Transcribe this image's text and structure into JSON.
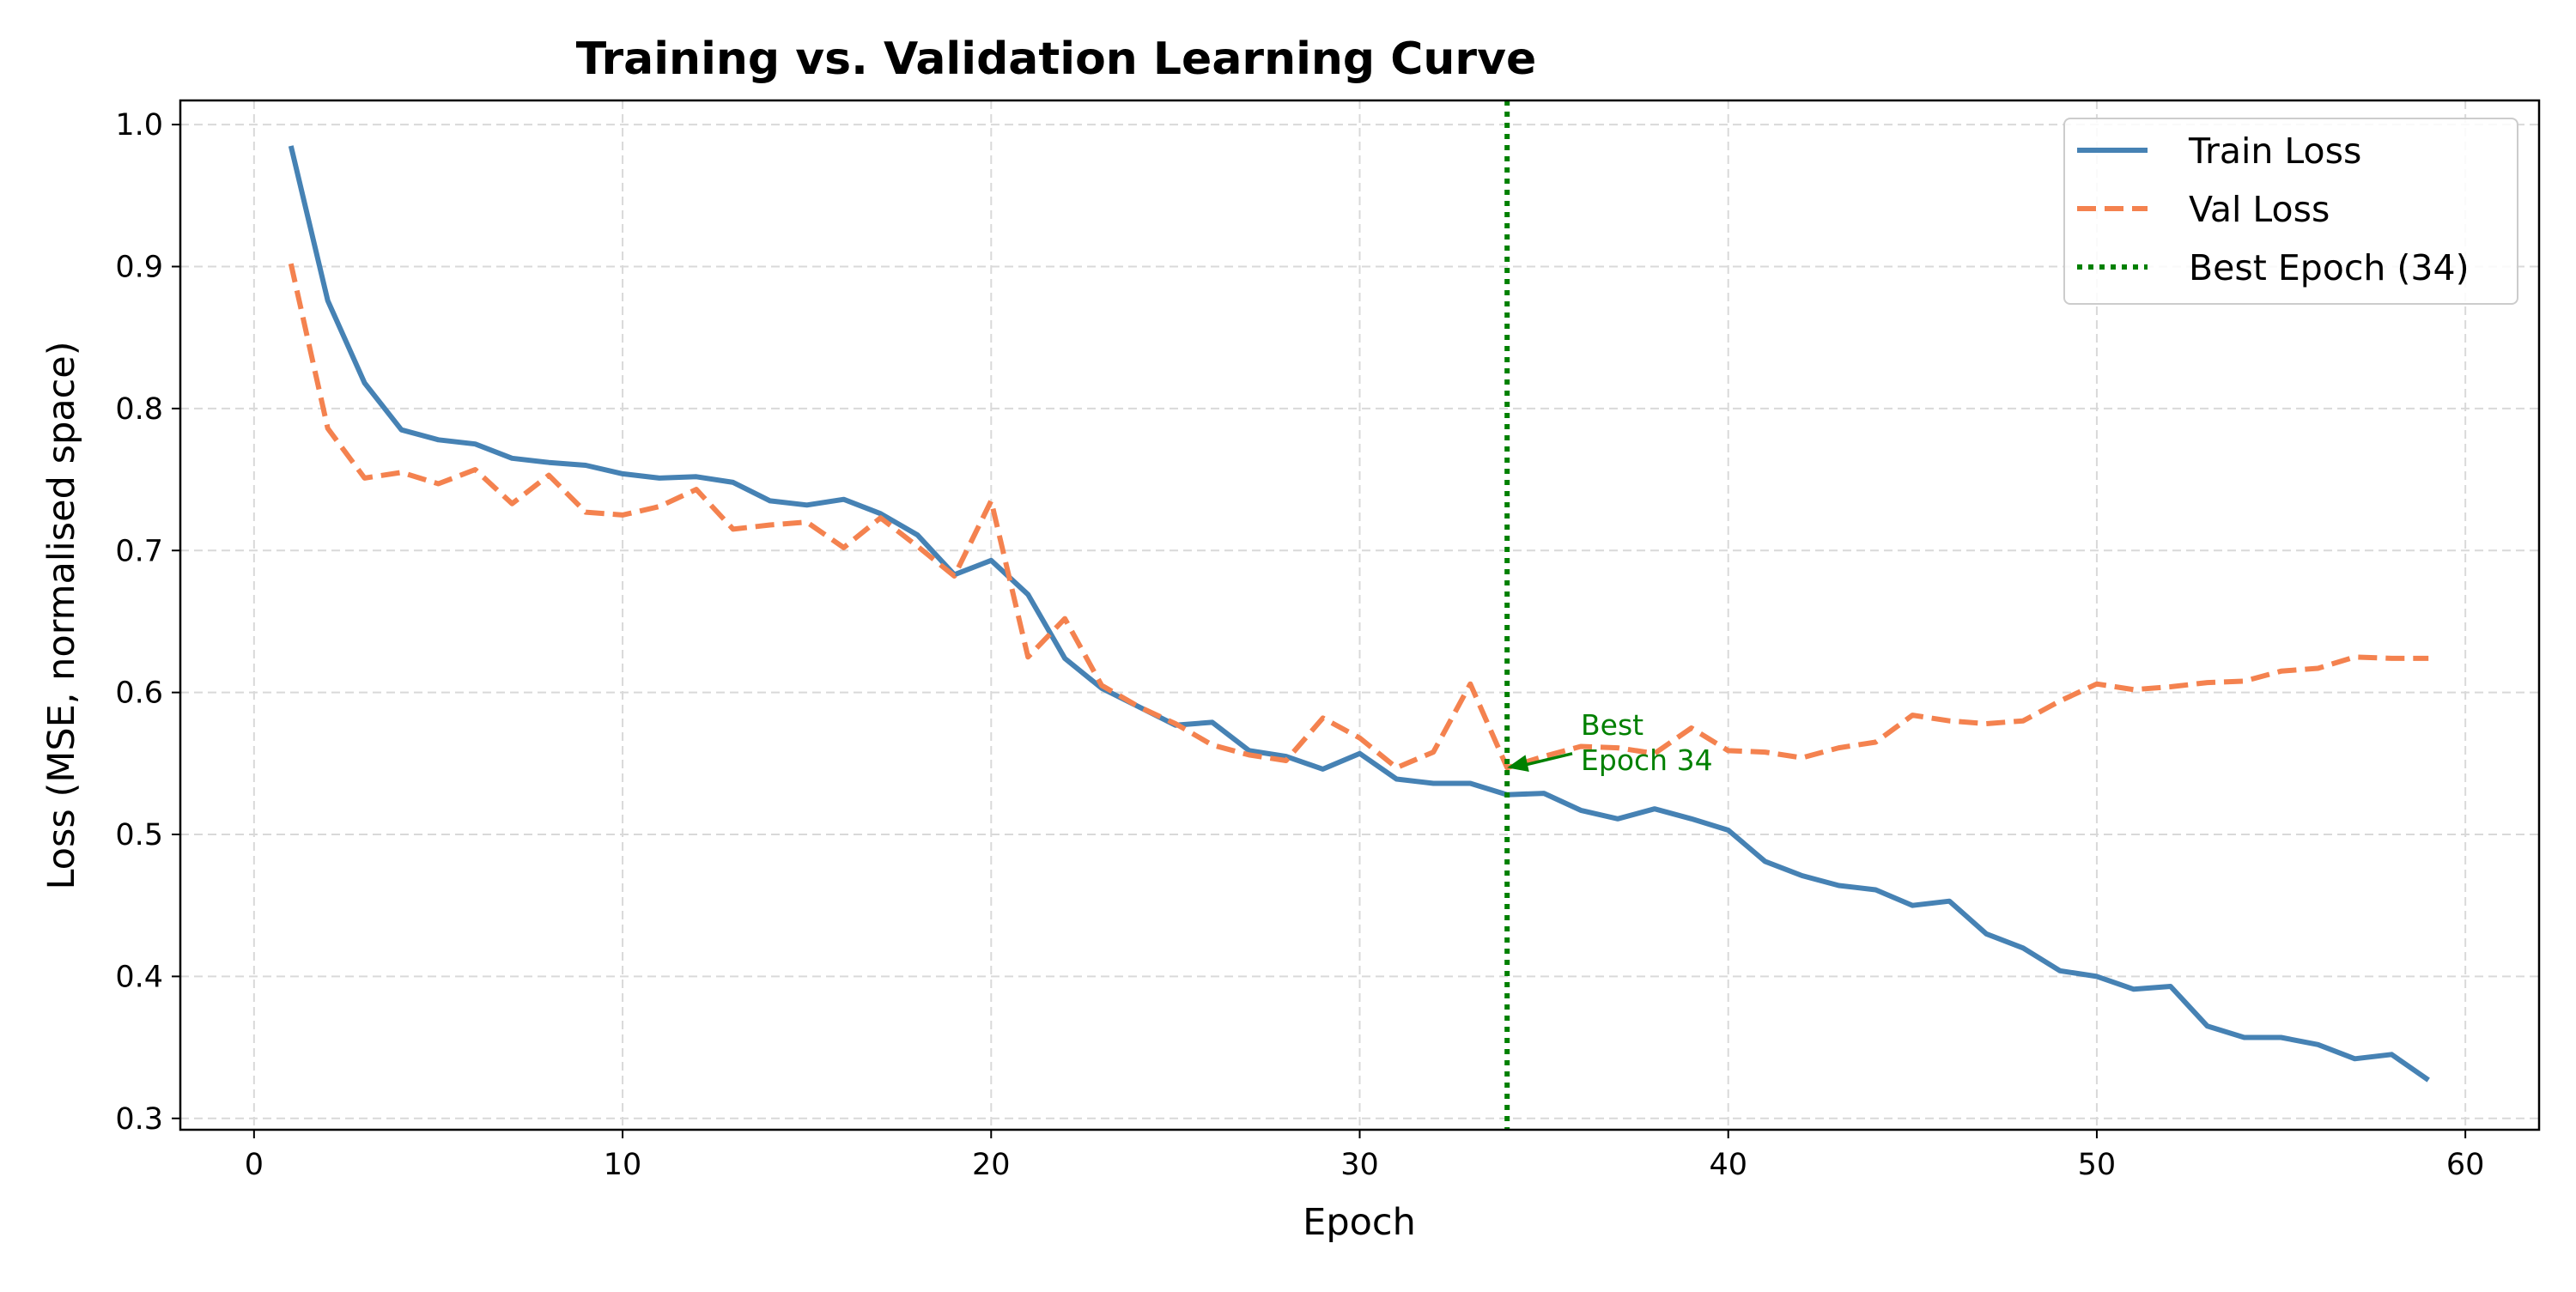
{
  "chart_data": {
    "type": "line",
    "title": "Training vs. Validation Learning Curve",
    "xlabel": "Epoch",
    "ylabel": "Loss (MSE, normalised space)",
    "xlim": [
      -2,
      62
    ],
    "ylim": [
      0.292,
      1.017
    ],
    "xticks": [
      0,
      10,
      20,
      30,
      40,
      50,
      60
    ],
    "yticks": [
      0.3,
      0.4,
      0.5,
      0.6,
      0.7,
      0.8,
      0.9,
      1.0
    ],
    "grid": true,
    "legend_position": "upper right",
    "x": [
      1,
      2,
      3,
      4,
      5,
      6,
      7,
      8,
      9,
      10,
      11,
      12,
      13,
      14,
      15,
      16,
      17,
      18,
      19,
      20,
      21,
      22,
      23,
      24,
      25,
      26,
      27,
      28,
      29,
      30,
      31,
      32,
      33,
      34,
      35,
      36,
      37,
      38,
      39,
      40,
      41,
      42,
      43,
      44,
      45,
      46,
      47,
      48,
      49,
      50,
      51,
      52,
      53,
      54,
      55,
      56,
      57,
      58,
      59
    ],
    "series": [
      {
        "name": "Train Loss",
        "style": "solid",
        "color": "#4682b4",
        "values": [
          0.985,
          0.876,
          0.818,
          0.785,
          0.778,
          0.775,
          0.765,
          0.762,
          0.76,
          0.754,
          0.751,
          0.752,
          0.748,
          0.735,
          0.732,
          0.736,
          0.726,
          0.711,
          0.683,
          0.693,
          0.669,
          0.624,
          0.603,
          0.59,
          0.577,
          0.579,
          0.559,
          0.555,
          0.546,
          0.557,
          0.539,
          0.536,
          0.536,
          0.528,
          0.529,
          0.517,
          0.511,
          0.518,
          0.511,
          0.503,
          0.481,
          0.471,
          0.464,
          0.461,
          0.45,
          0.453,
          0.43,
          0.42,
          0.404,
          0.4,
          0.391,
          0.393,
          0.365,
          0.357,
          0.357,
          0.352,
          0.342,
          0.345,
          0.327
        ]
      },
      {
        "name": "Val Loss",
        "style": "dashed",
        "color": "#f4824f",
        "values": [
          0.902,
          0.786,
          0.751,
          0.755,
          0.747,
          0.757,
          0.733,
          0.753,
          0.727,
          0.725,
          0.731,
          0.743,
          0.715,
          0.718,
          0.72,
          0.702,
          0.723,
          0.703,
          0.682,
          0.735,
          0.625,
          0.652,
          0.605,
          0.59,
          0.578,
          0.563,
          0.556,
          0.552,
          0.582,
          0.568,
          0.547,
          0.558,
          0.606,
          0.547,
          0.555,
          0.562,
          0.561,
          0.557,
          0.575,
          0.559,
          0.558,
          0.554,
          0.561,
          0.565,
          0.584,
          0.58,
          0.578,
          0.58,
          0.594,
          0.606,
          0.602,
          0.604,
          0.607,
          0.608,
          0.615,
          0.617,
          0.625,
          0.624,
          0.624
        ]
      }
    ],
    "vline": {
      "name": "Best Epoch (34)",
      "x": 34,
      "color": "#008000",
      "style": "dotted"
    },
    "annotation": {
      "line1": "Best",
      "line2": "Epoch 34",
      "target_x": 34,
      "target_y": 0.547,
      "text_x": 36,
      "text_y": 0.56,
      "color": "#008000"
    }
  }
}
